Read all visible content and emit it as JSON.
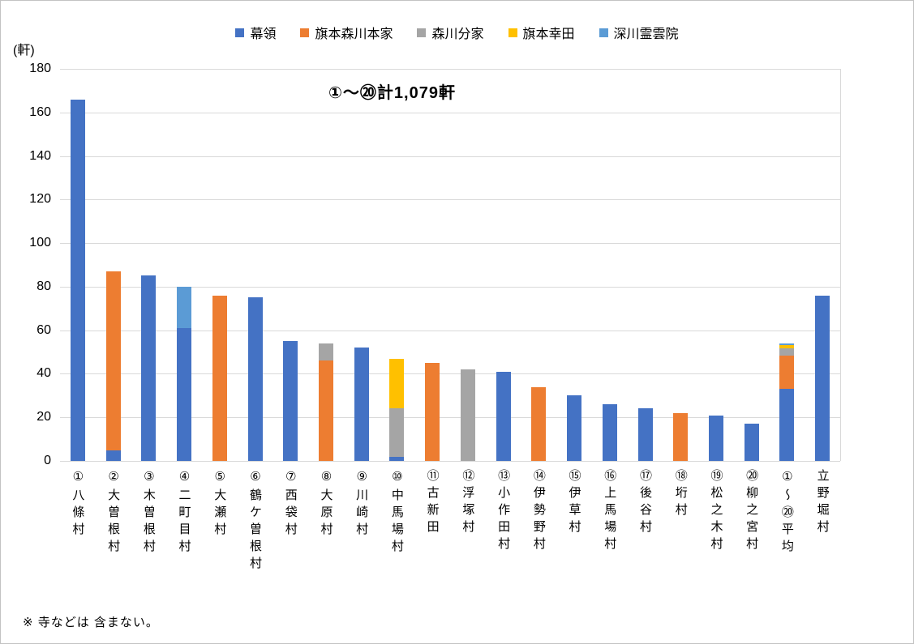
{
  "footnote": {
    "text": "※ 寺などは 含まない。"
  },
  "chart_data": {
    "type": "bar",
    "stacked": true,
    "title": "①～⑳計1,079軒",
    "ylabel": "(軒)",
    "xlabel": "",
    "ylim": [
      0,
      180
    ],
    "ytick_step": 20,
    "grid": true,
    "legend_position": "top",
    "total_houses": "1,079",
    "categories": [
      "①八條村",
      "②大曽根村",
      "③木曽根村",
      "④二町目村",
      "⑤大瀬村",
      "⑥鶴ケ曽根村",
      "⑦西袋村",
      "⑧大原村",
      "⑨川崎村",
      "⑩中馬場村",
      "⑪古新田",
      "⑫浮塚村",
      "⑬小作田村",
      "⑭伊勢野村",
      "⑮伊草村",
      "⑯上馬場村",
      "⑰後谷村",
      "⑱垳村",
      "⑲松之木村",
      "⑳柳之宮村",
      "①〜⑳平均",
      "立野堀村"
    ],
    "series": [
      {
        "name": "幕領",
        "color": "#4472C4",
        "values": [
          166,
          5,
          85,
          61,
          0,
          75,
          55,
          0,
          52,
          2,
          0,
          0,
          41,
          0,
          30,
          26,
          24,
          0,
          21,
          17,
          33,
          76
        ]
      },
      {
        "name": "旗本森川本家",
        "color": "#ED7D31",
        "values": [
          0,
          82,
          0,
          0,
          76,
          0,
          0,
          46,
          0,
          0,
          45,
          0,
          0,
          34,
          0,
          0,
          0,
          22,
          0,
          0,
          15.25,
          0
        ]
      },
      {
        "name": "森川分家",
        "color": "#A5A5A5",
        "values": [
          0,
          0,
          0,
          0,
          0,
          0,
          0,
          8,
          0,
          22,
          0,
          42,
          0,
          0,
          0,
          0,
          0,
          0,
          0,
          0,
          3.6,
          0
        ]
      },
      {
        "name": "旗本幸田",
        "color": "#FFC000",
        "values": [
          0,
          0,
          0,
          0,
          0,
          0,
          0,
          0,
          0,
          23,
          0,
          0,
          0,
          0,
          0,
          0,
          0,
          0,
          0,
          0,
          1.15,
          0
        ]
      },
      {
        "name": "深川霊雲院",
        "color": "#5B9BD5",
        "values": [
          0,
          0,
          0,
          19,
          0,
          0,
          0,
          0,
          0,
          0,
          0,
          0,
          0,
          0,
          0,
          0,
          0,
          0,
          0,
          0,
          0.95,
          0
        ]
      }
    ],
    "bar_totals": [
      166,
      87,
      85,
      80,
      76,
      75,
      55,
      54,
      52,
      47,
      45,
      42,
      41,
      34,
      30,
      26,
      24,
      22,
      21,
      17,
      53.95,
      76
    ]
  }
}
